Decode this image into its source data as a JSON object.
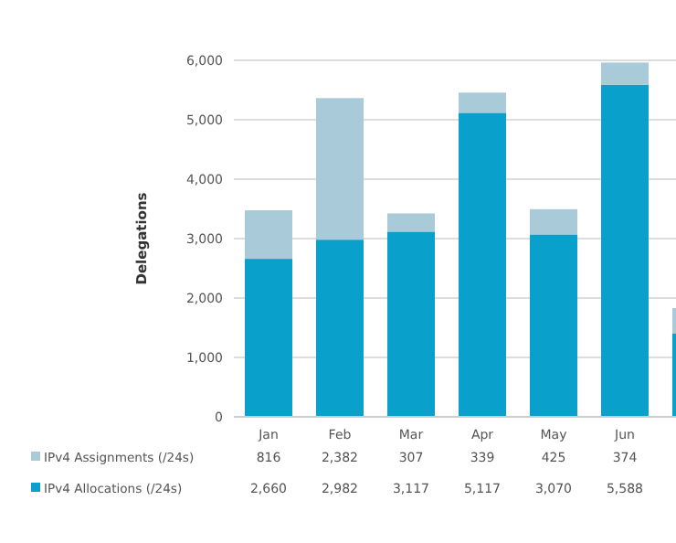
{
  "chart_data": {
    "type": "bar",
    "stacked": true,
    "ylabel": "Delegations",
    "categories": [
      "Jan",
      "Feb",
      "Mar",
      "Apr",
      "May",
      "Jun",
      null
    ],
    "ylim": [
      0,
      6000
    ],
    "yticks": [
      {
        "value": 0,
        "label": "0"
      },
      {
        "value": 1000,
        "label": "1,000"
      },
      {
        "value": 2000,
        "label": "2,000"
      },
      {
        "value": 3000,
        "label": "3,000"
      },
      {
        "value": 4000,
        "label": "4,000"
      },
      {
        "value": 5000,
        "label": "5,000"
      },
      {
        "value": 6000,
        "label": "6,000"
      }
    ],
    "grid": "y",
    "legend": "bottom left",
    "series": [
      {
        "name": "IPv4 Allocations (/24s)",
        "color": "#0aa0cc",
        "values": [
          2660,
          2982,
          3117,
          5117,
          3070,
          5588,
          1400
        ],
        "value_labels": [
          "2,660",
          "2,982",
          "3,117",
          "5,117",
          "3,070",
          "5,588",
          null
        ]
      },
      {
        "name": "IPv4 Assignments (/24s)",
        "color": "#a9cad8",
        "values": [
          816,
          2382,
          307,
          339,
          425,
          374,
          430
        ],
        "value_labels": [
          "816",
          "2,382",
          "307",
          "339",
          "425",
          "374",
          null
        ]
      }
    ]
  }
}
